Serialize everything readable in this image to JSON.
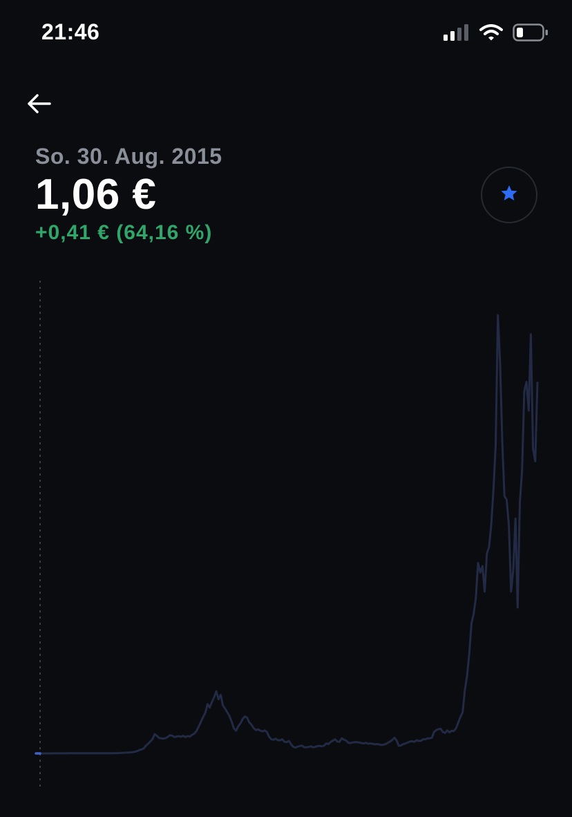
{
  "status_bar": {
    "time": "21:46",
    "icons": [
      "cellular-signal-icon",
      "wifi-icon",
      "battery-icon"
    ]
  },
  "header": {
    "back_icon": "arrow-left-icon"
  },
  "asset": {
    "date": "So. 30. Aug. 2015",
    "price": "1,06 €",
    "change": "+0,41 € (64,16 %)",
    "watch_icon": "star-icon"
  },
  "colors": {
    "background": "#0b0c0f",
    "line": "#222a45",
    "line_start": "#3f63c7",
    "change_positive": "#31a66b",
    "star": "#2f6cf4",
    "muted_text": "#8a8f99"
  },
  "chart_data": {
    "type": "line",
    "title": "",
    "xlabel": "",
    "ylabel": "",
    "y_unit": "€",
    "selected_point": {
      "label": "So. 30. Aug. 2015",
      "y": 1.06
    },
    "grid": false,
    "series": [
      {
        "values": [
          1.06,
          1.06,
          1.06,
          1.06,
          1.07,
          1.07,
          1.07,
          1.07,
          1.08,
          1.08,
          1.08,
          1.09,
          1.09,
          1.09,
          1.09,
          1.1,
          1.1,
          1.1,
          1.1,
          1.1,
          1.11,
          1.11,
          1.11,
          1.1,
          1.1,
          1.1,
          1.11,
          1.11,
          1.11,
          1.1,
          1.1,
          1.11,
          1.12,
          1.12,
          1.12,
          1.13,
          1.14,
          1.15,
          1.18,
          1.24,
          1.28,
          1.3,
          1.35,
          1.38,
          1.45,
          1.6,
          1.8,
          2.1,
          2.3,
          2.6,
          3.5,
          4.1,
          4.8,
          5.6,
          7.1,
          6.6,
          5.9,
          5.8,
          5.7,
          5.9,
          6.3,
          6.8,
          6.6,
          6.2,
          6.4,
          6.5,
          6.3,
          6.6,
          6.2,
          6.5,
          6.4,
          6.9,
          7.3,
          8.1,
          9.5,
          11.0,
          12.5,
          13.8,
          16.6,
          15.5,
          17.2,
          18.7,
          20.6,
          18.1,
          19.5,
          16.1,
          15.2,
          14.0,
          12.8,
          11.0,
          8.9,
          8.2,
          9.6,
          10.5,
          11.9,
          12.7,
          12.3,
          10.8,
          10.1,
          9.0,
          8.4,
          8.6,
          8.2,
          8.0,
          8.3,
          7.8,
          6.3,
          5.5,
          5.4,
          5.7,
          5.2,
          5.2,
          5.5,
          4.7,
          4.6,
          5.0,
          3.9,
          3.1,
          2.9,
          3.2,
          3.4,
          3.5,
          3.0,
          3.0,
          3.1,
          3.3,
          3.0,
          3.1,
          3.4,
          3.4,
          3.3,
          3.5,
          4.2,
          4.0,
          4.7,
          5.1,
          5.5,
          4.8,
          4.7,
          5.8,
          5.4,
          5.1,
          4.4,
          4.3,
          4.5,
          4.6,
          4.6,
          4.5,
          4.3,
          4.2,
          4.4,
          4.1,
          4.2,
          4.1,
          3.9,
          4.0,
          3.9,
          3.7,
          3.8,
          4.0,
          4.4,
          4.8,
          5.3,
          6.0,
          5.1,
          3.4,
          3.6,
          4.0,
          4.2,
          4.5,
          4.8,
          4.9,
          4.7,
          5.2,
          5.0,
          5.0,
          5.5,
          5.5,
          5.8,
          5.8,
          6.0,
          7.8,
          8.4,
          8.7,
          8.8,
          7.8,
          7.5,
          8.3,
          7.7,
          8.2,
          8.1,
          9.0,
          10.8,
          12.6,
          14.0,
          21.0,
          25.5,
          32.5,
          42.0,
          45.0,
          50.0,
          61.0,
          58.0,
          60.0,
          52.0,
          64.0,
          66.0,
          73.0,
          84.0,
          98.0,
          139.0,
          124.0,
          99.0,
          82.0,
          81.0,
          73.0,
          52.0,
          59.0,
          75.0,
          47.0,
          80.0,
          90.0,
          115.0,
          118.0,
          109.0,
          133.0,
          97.0,
          93.0,
          118.0
        ]
      }
    ]
  }
}
